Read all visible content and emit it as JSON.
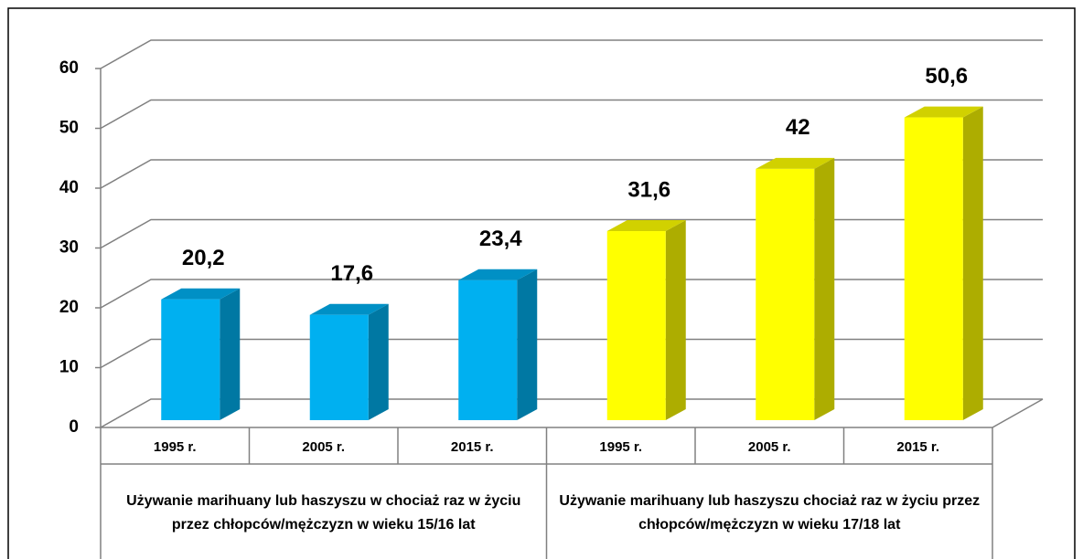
{
  "chart_data": {
    "type": "bar3d",
    "ylim": [
      0,
      60
    ],
    "yticks": [
      0,
      10,
      20,
      30,
      40,
      50,
      60
    ],
    "grid": true,
    "groups": [
      {
        "label": "Używanie marihuany lub haszyszu w chociaż raz w życiu przez chłopców/mężczyzn w wieku 15/16 lat",
        "color": "#00b0f0",
        "categories": [
          "1995 r.",
          "2005 r.",
          "2015 r."
        ],
        "values": [
          20.2,
          17.6,
          23.4
        ],
        "value_labels": [
          "20,2",
          "17,6",
          "23,4"
        ]
      },
      {
        "label": "Używanie marihuany lub haszyszu chociaż raz w życiu przez chłopców/mężczyzn w wieku 17/18 lat",
        "color": "#ffff00",
        "categories": [
          "1995 r.",
          "2005 r.",
          "2015 r."
        ],
        "values": [
          31.6,
          42,
          50.6
        ],
        "value_labels": [
          "31,6",
          "42",
          "50,6"
        ]
      }
    ]
  }
}
